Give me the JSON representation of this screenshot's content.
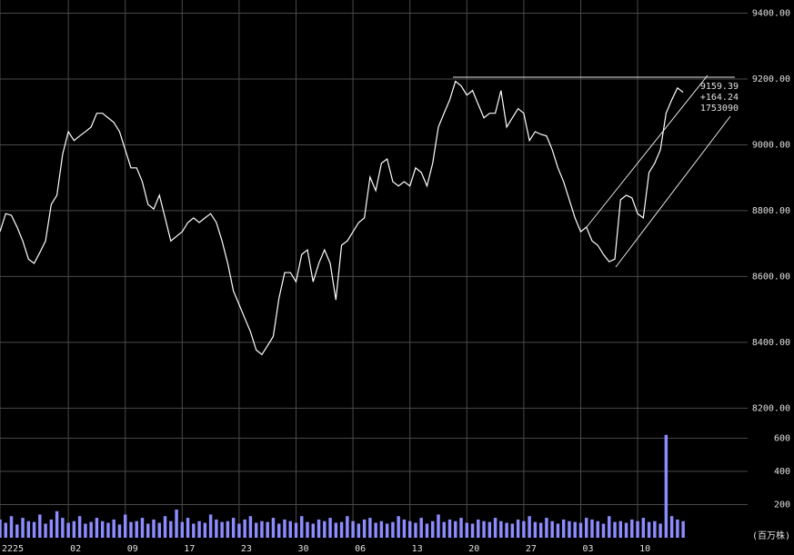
{
  "chart_data": [
    {
      "type": "line",
      "color": "#ffffff",
      "grid": true,
      "xlim": [
        0,
        131
      ],
      "ylim": [
        8190,
        9440
      ],
      "yticks": [
        {
          "value": 8200,
          "label": "8200.00"
        },
        {
          "value": 8400,
          "label": "8400.00"
        },
        {
          "value": 8600,
          "label": "8600.00"
        },
        {
          "value": 8800,
          "label": "8800.00"
        },
        {
          "value": 9000,
          "label": "9000.00"
        },
        {
          "value": 9200,
          "label": "9200.00"
        },
        {
          "value": 9400,
          "label": "9400.00"
        }
      ],
      "annotations": [
        "9159.39",
        "+164.24",
        "1753090"
      ],
      "values": [
        8736,
        8791,
        8786,
        8750,
        8708,
        8653,
        8640,
        8673,
        8708,
        8819,
        8847,
        8971,
        9040,
        9013,
        9027,
        9040,
        9054,
        9096,
        9096,
        9082,
        9068,
        9040,
        8985,
        8930,
        8930,
        8888,
        8819,
        8805,
        8847,
        8778,
        8708,
        8722,
        8736,
        8764,
        8778,
        8764,
        8778,
        8791,
        8764,
        8708,
        8640,
        8556,
        8515,
        8473,
        8432,
        8377,
        8363,
        8390,
        8418,
        8534,
        8612,
        8612,
        8584,
        8667,
        8681,
        8584,
        8640,
        8681,
        8640,
        8529,
        8695,
        8708,
        8736,
        8764,
        8778,
        8902,
        8861,
        8944,
        8957,
        8888,
        8875,
        8888,
        8875,
        8930,
        8916,
        8875,
        8944,
        9054,
        9096,
        9137,
        9193,
        9179,
        9151,
        9165,
        9123,
        9082,
        9096,
        9096,
        9165,
        9054,
        9082,
        9110,
        9096,
        9013,
        9040,
        9032,
        9027,
        8985,
        8930,
        8888,
        8833,
        8778,
        8736,
        8750,
        8708,
        8695,
        8667,
        8645,
        8653,
        8833,
        8847,
        8839,
        8791,
        8778,
        8916,
        8944,
        8985,
        9096,
        9137,
        9173,
        9159.39
      ]
    },
    {
      "type": "bar",
      "color": "#8c8cff",
      "grid": true,
      "ylabel": "(百万株)",
      "xlim": [
        0,
        131
      ],
      "ylim": [
        0,
        750
      ],
      "yticks": [
        200,
        400,
        600
      ],
      "xticks": [
        {
          "value": 0,
          "label": "2225"
        },
        {
          "value": 12,
          "label": "02"
        },
        {
          "value": 22,
          "label": "09"
        },
        {
          "value": 32,
          "label": "17"
        },
        {
          "value": 42,
          "label": "23"
        },
        {
          "value": 52,
          "label": "30"
        },
        {
          "value": 62,
          "label": "06"
        },
        {
          "value": 72,
          "label": "13"
        },
        {
          "value": 82,
          "label": "20"
        },
        {
          "value": 92,
          "label": "27"
        },
        {
          "value": 102,
          "label": "03"
        },
        {
          "value": 112,
          "label": "10"
        }
      ],
      "values": [
        110,
        90,
        130,
        80,
        120,
        100,
        95,
        140,
        85,
        110,
        160,
        120,
        90,
        100,
        130,
        85,
        95,
        120,
        100,
        90,
        110,
        80,
        140,
        95,
        100,
        120,
        85,
        110,
        90,
        130,
        100,
        170,
        95,
        120,
        85,
        100,
        90,
        140,
        110,
        95,
        100,
        120,
        85,
        110,
        130,
        90,
        100,
        95,
        120,
        85,
        110,
        100,
        90,
        130,
        95,
        85,
        110,
        100,
        120,
        90,
        95,
        130,
        100,
        85,
        110,
        120,
        90,
        100,
        85,
        95,
        130,
        110,
        100,
        90,
        120,
        85,
        100,
        140,
        95,
        110,
        100,
        120,
        90,
        85,
        110,
        100,
        95,
        120,
        100,
        90,
        85,
        110,
        100,
        130,
        95,
        90,
        120,
        100,
        85,
        110,
        100,
        95,
        90,
        120,
        110,
        100,
        85,
        130,
        95,
        100,
        90,
        110,
        100,
        120,
        95,
        100,
        85,
        620,
        130,
        110,
        100
      ]
    }
  ]
}
